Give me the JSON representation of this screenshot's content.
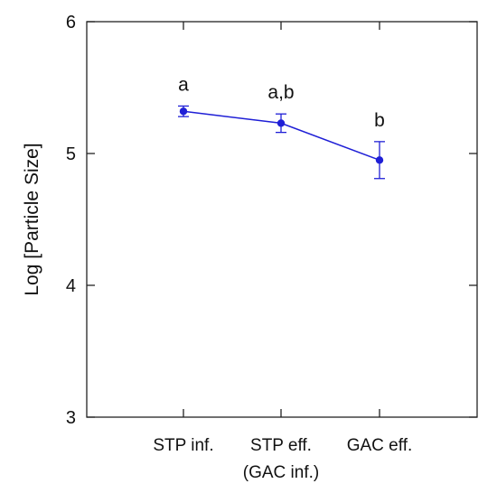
{
  "chart_data": {
    "type": "line",
    "title": "",
    "xlabel": "",
    "ylabel": "Log [Particle Size]",
    "ylim": [
      3,
      6
    ],
    "yticks": [
      3,
      4,
      5,
      6
    ],
    "categories": [
      [
        "STP inf."
      ],
      [
        "STP eff.",
        "(GAC inf.)"
      ],
      [
        "GAC eff."
      ]
    ],
    "series": [
      {
        "values": [
          5.32,
          5.23,
          4.95
        ],
        "errors": [
          0.04,
          0.07,
          0.14
        ],
        "significance": [
          "a",
          "a,b",
          "b"
        ],
        "color": "#1f1fd6"
      }
    ],
    "grid": false,
    "legend": "none"
  }
}
